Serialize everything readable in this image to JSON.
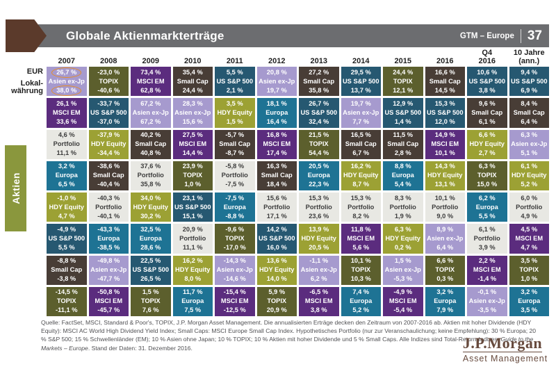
{
  "header": {
    "title": "Globale Aktienmarkterträge",
    "gtm_label": "GTM – Europe",
    "page_number": "37"
  },
  "axis_labels": {
    "eur": "EUR",
    "local_line1": "Lokal-",
    "local_line2": "währung"
  },
  "section_tab": "Aktien",
  "chart_data": {
    "type": "table",
    "title": "Globale Aktienmarkterträge",
    "value_rows": {
      "top": "EUR Ertrag %",
      "bottom": "Lokalwährung Ertrag %"
    },
    "highlight_color": "#e78e23",
    "asset_styles": {
      "Asien ex-Jp": {
        "bg": "#a69ace",
        "fg": "#ffffff"
      },
      "TOPIX": {
        "bg": "#5c5f2d",
        "fg": "#ffffff"
      },
      "MSCI EM": {
        "bg": "#5b2c7e",
        "fg": "#ffffff"
      },
      "Small Cap": {
        "bg": "#483d36",
        "fg": "#ffffff"
      },
      "US S&P 500": {
        "bg": "#265871",
        "fg": "#ffffff"
      },
      "Europa": {
        "bg": "#1e7394",
        "fg": "#ffffff"
      },
      "Portfolio": {
        "bg": "#e8e8e3",
        "fg": "#3d3d3d"
      },
      "HDY Equity": {
        "bg": "#9ca134",
        "fg": "#ffffff"
      }
    },
    "columns": [
      {
        "label": [
          "2007"
        ],
        "cells": [
          {
            "asset": "Asien ex-Jp",
            "eur": "26,7 %",
            "local": "38,0 %",
            "highlight": true
          },
          {
            "asset": "MSCI EM",
            "eur": "26,1 %",
            "local": "33,6 %"
          },
          {
            "asset": "Portfolio",
            "eur": "4,6 %",
            "local": "11,1 %"
          },
          {
            "asset": "Europa",
            "eur": "3,2 %",
            "local": "6,5 %"
          },
          {
            "asset": "HDY Equity",
            "eur": "-1,0 %",
            "local": "4,7 %"
          },
          {
            "asset": "US S&P 500",
            "eur": "-4,9 %",
            "local": "5,5 %"
          },
          {
            "asset": "Small Cap",
            "eur": "-8,8 %",
            "local": "-3,8 %"
          },
          {
            "asset": "TOPIX",
            "eur": "-14,5 %",
            "local": "-11,1 %"
          }
        ]
      },
      {
        "label": [
          "2008"
        ],
        "cells": [
          {
            "asset": "TOPIX",
            "eur": "-23,0 %",
            "local": "-40,6 %"
          },
          {
            "asset": "US S&P 500",
            "eur": "-33,7 %",
            "local": "-37,0 %"
          },
          {
            "asset": "HDY Equity",
            "eur": "-37,9 %",
            "local": "-34,4 %"
          },
          {
            "asset": "Small Cap",
            "eur": "-38,6 %",
            "local": "-40,4 %"
          },
          {
            "asset": "Portfolio",
            "eur": "-40,3 %",
            "local": "-40,1 %"
          },
          {
            "asset": "Europa",
            "eur": "-43,3 %",
            "local": "-38,5 %"
          },
          {
            "asset": "Asien ex-Jp",
            "eur": "-49,8 %",
            "local": "-47,7 %"
          },
          {
            "asset": "MSCI EM",
            "eur": "-50,8 %",
            "local": "-45,7 %"
          }
        ]
      },
      {
        "label": [
          "2009"
        ],
        "cells": [
          {
            "asset": "MSCI EM",
            "eur": "73,4 %",
            "local": "62,8 %"
          },
          {
            "asset": "Asien ex-Jp",
            "eur": "67,2 %",
            "local": "67,2 %"
          },
          {
            "asset": "Small Cap",
            "eur": "40,2 %",
            "local": "40,8 %"
          },
          {
            "asset": "Portfolio",
            "eur": "37,6 %",
            "local": "35,8 %"
          },
          {
            "asset": "HDY Equity",
            "eur": "34,0 %",
            "local": "30,2 %"
          },
          {
            "asset": "Europa",
            "eur": "32,5 %",
            "local": "28,6 %"
          },
          {
            "asset": "US S&P 500",
            "eur": "22,5 %",
            "local": "26,5 %"
          },
          {
            "asset": "TOPIX",
            "eur": "1,5 %",
            "local": "7,6 %"
          }
        ]
      },
      {
        "label": [
          "2010"
        ],
        "cells": [
          {
            "asset": "Small Cap",
            "eur": "35,4 %",
            "local": "24,4 %"
          },
          {
            "asset": "Asien ex-Jp",
            "eur": "28,3 %",
            "local": "15,6 %"
          },
          {
            "asset": "MSCI EM",
            "eur": "27,5 %",
            "local": "14,4 %"
          },
          {
            "asset": "TOPIX",
            "eur": "23,9 %",
            "local": "1,0 %"
          },
          {
            "asset": "US S&P 500",
            "eur": "23,1 %",
            "local": "15,1 %"
          },
          {
            "asset": "Portfolio",
            "eur": "20,9 %",
            "local": "11,1 %"
          },
          {
            "asset": "HDY Equity",
            "eur": "16,2 %",
            "local": "8,0 %"
          },
          {
            "asset": "Europa",
            "eur": "11,7 %",
            "local": "7,5 %"
          }
        ]
      },
      {
        "label": [
          "2011"
        ],
        "cells": [
          {
            "asset": "US S&P 500",
            "eur": "5,5 %",
            "local": "2,1 %"
          },
          {
            "asset": "HDY Equity",
            "eur": "3,5 %",
            "local": "1,5 %"
          },
          {
            "asset": "Small Cap",
            "eur": "-5,7 %",
            "local": "-8,7 %"
          },
          {
            "asset": "Portfolio",
            "eur": "-5,8 %",
            "local": "-7,5 %"
          },
          {
            "asset": "Europa",
            "eur": "-7,5 %",
            "local": "-8,8 %"
          },
          {
            "asset": "TOPIX",
            "eur": "-9,6 %",
            "local": "-17,0 %"
          },
          {
            "asset": "Asien ex-Jp",
            "eur": "-14,3 %",
            "local": "-14,6 %"
          },
          {
            "asset": "MSCI EM",
            "eur": "-15,4 %",
            "local": "-12,5 %"
          }
        ]
      },
      {
        "label": [
          "2012"
        ],
        "cells": [
          {
            "asset": "Asien ex-Jp",
            "eur": "20,8 %",
            "local": "19,7 %"
          },
          {
            "asset": "Europa",
            "eur": "18,1 %",
            "local": "16,4 %"
          },
          {
            "asset": "MSCI EM",
            "eur": "16,8 %",
            "local": "17,4 %"
          },
          {
            "asset": "Small Cap",
            "eur": "16,3 %",
            "local": "18,4 %"
          },
          {
            "asset": "Portfolio",
            "eur": "15,6 %",
            "local": "17,1 %"
          },
          {
            "asset": "US S&P 500",
            "eur": "14,2 %",
            "local": "16,0 %"
          },
          {
            "asset": "HDY Equity",
            "eur": "13,6 %",
            "local": "14,0 %"
          },
          {
            "asset": "TOPIX",
            "eur": "5,9 %",
            "local": "20,9 %"
          }
        ]
      },
      {
        "label": [
          "2013"
        ],
        "cells": [
          {
            "asset": "Small Cap",
            "eur": "27,2 %",
            "local": "35,8 %"
          },
          {
            "asset": "US S&P 500",
            "eur": "26,7 %",
            "local": "32,4 %"
          },
          {
            "asset": "TOPIX",
            "eur": "21,5 %",
            "local": "54,4 %"
          },
          {
            "asset": "Europa",
            "eur": "20,5 %",
            "local": "22,3 %"
          },
          {
            "asset": "Portfolio",
            "eur": "15,3 %",
            "local": "23,6 %"
          },
          {
            "asset": "HDY Equity",
            "eur": "13,9 %",
            "local": "20,5 %"
          },
          {
            "asset": "Asien ex-Jp",
            "eur": "-1,1 %",
            "local": "6,2 %"
          },
          {
            "asset": "MSCI EM",
            "eur": "-6,5 %",
            "local": "3,8 %"
          }
        ]
      },
      {
        "label": [
          "2014"
        ],
        "cells": [
          {
            "asset": "US S&P 500",
            "eur": "29,5 %",
            "local": "13,7 %"
          },
          {
            "asset": "Asien ex-Jp",
            "eur": "19,7 %",
            "local": "7,7 %"
          },
          {
            "asset": "Small Cap",
            "eur": "16,5 %",
            "local": "6,7 %"
          },
          {
            "asset": "HDY Equity",
            "eur": "16,2 %",
            "local": "8,7 %"
          },
          {
            "asset": "Portfolio",
            "eur": "15,3 %",
            "local": "8,2 %"
          },
          {
            "asset": "MSCI EM",
            "eur": "11,8 %",
            "local": "5,6 %"
          },
          {
            "asset": "TOPIX",
            "eur": "10,1 %",
            "local": "10,3 %"
          },
          {
            "asset": "Europa",
            "eur": "7,4 %",
            "local": "5,2 %"
          }
        ]
      },
      {
        "label": [
          "2015"
        ],
        "cells": [
          {
            "asset": "TOPIX",
            "eur": "24,4 %",
            "local": "12,1 %"
          },
          {
            "asset": "US S&P 500",
            "eur": "12,9 %",
            "local": "1,4 %"
          },
          {
            "asset": "Small Cap",
            "eur": "11,5 %",
            "local": "2,8 %"
          },
          {
            "asset": "Europa",
            "eur": "8,8 %",
            "local": "5,4 %"
          },
          {
            "asset": "Portfolio",
            "eur": "8,3 %",
            "local": "1,9 %"
          },
          {
            "asset": "HDY Equity",
            "eur": "6,3 %",
            "local": "0,2 %"
          },
          {
            "asset": "Asien ex-Jp",
            "eur": "1,5 %",
            "local": "-5,3 %"
          },
          {
            "asset": "MSCI EM",
            "eur": "-4,9 %",
            "local": "-5,4 %"
          }
        ]
      },
      {
        "label": [
          "2016"
        ],
        "cells": [
          {
            "asset": "Small Cap",
            "eur": "16,6 %",
            "local": "14,5 %"
          },
          {
            "asset": "US S&P 500",
            "eur": "15,3 %",
            "local": "12,0 %"
          },
          {
            "asset": "MSCI EM",
            "eur": "14,9 %",
            "local": "10,1 %"
          },
          {
            "asset": "HDY Equity",
            "eur": "14,3 %",
            "local": "13,1 %"
          },
          {
            "asset": "Portfolio",
            "eur": "10,1 %",
            "local": "9,0 %"
          },
          {
            "asset": "Asien ex-Jp",
            "eur": "8,9 %",
            "local": "6,4 %"
          },
          {
            "asset": "TOPIX",
            "eur": "6,6 %",
            "local": "0,3 %"
          },
          {
            "asset": "Europa",
            "eur": "3,2 %",
            "local": "7,9 %"
          }
        ]
      },
      {
        "label": [
          "Q4",
          "2016"
        ],
        "cells": [
          {
            "asset": "US S&P 500",
            "eur": "10,6 %",
            "local": "3,8 %"
          },
          {
            "asset": "Small Cap",
            "eur": "9,6 %",
            "local": "6,1 %"
          },
          {
            "asset": "HDY Equity",
            "eur": "6,6 %",
            "local": "2,7 %"
          },
          {
            "asset": "TOPIX",
            "eur": "6,3 %",
            "local": "15,0 %"
          },
          {
            "asset": "Europa",
            "eur": "6,2 %",
            "local": "5,5 %"
          },
          {
            "asset": "Portfolio",
            "eur": "6,1 %",
            "local": "3,9 %"
          },
          {
            "asset": "MSCI EM",
            "eur": "2,2 %",
            "local": "-1,4 %"
          },
          {
            "asset": "Asien ex-Jp",
            "eur": "-0,1 %",
            "local": "-3,5 %"
          }
        ]
      },
      {
        "label": [
          "10 Jahre",
          "(ann.)"
        ],
        "cells": [
          {
            "asset": "US S&P 500",
            "eur": "9,4 %",
            "local": "6,9 %"
          },
          {
            "asset": "Small Cap",
            "eur": "8,4 %",
            "local": "6,4 %"
          },
          {
            "asset": "Asien ex-Jp",
            "eur": "6,3 %",
            "local": "5,1 %"
          },
          {
            "asset": "HDY Equity",
            "eur": "6,1 %",
            "local": "5,2 %"
          },
          {
            "asset": "Portfolio",
            "eur": "6,0 %",
            "local": "4,9 %"
          },
          {
            "asset": "MSCI EM",
            "eur": "4,5 %",
            "local": "4,7 %"
          },
          {
            "asset": "TOPIX",
            "eur": "3,5 %",
            "local": "1,0 %"
          },
          {
            "asset": "Europa",
            "eur": "3,2 %",
            "local": "3,5 %"
          }
        ]
      }
    ]
  },
  "footer": {
    "text_before_italic": "Quelle: FactSet, MSCI, Standard & Poor's, TOPIX, J.P. Morgan Asset Management. Die annualisierten Erträge decken den Zeitraum von 2007-2016 ab. Aktien mit hoher Dividende (HDY Equity): MSCI AC World High Dividend Yield Index; Small Caps: MSCI Europe Small Cap Index. Hypothetisches Portfolio (nur zur Veranschaulichung; keine Empfehlung): 30 % Europa; 20 % S&P 500; 15 % Schwellenländer (EM); 10 % Asien ohne Japan; 10 % TOPIX; 10 % Aktien mit hoher Dividende und 5 % Small Caps. Alle Indizes sind Total-Return-Indizes. ",
    "italic": "Guide to the Markets – Europe",
    "text_after_italic": ". Stand der Daten: 31. Dezember 2016."
  },
  "logo": {
    "line1": "J.P.Morgan",
    "line2": "Asset Management"
  }
}
